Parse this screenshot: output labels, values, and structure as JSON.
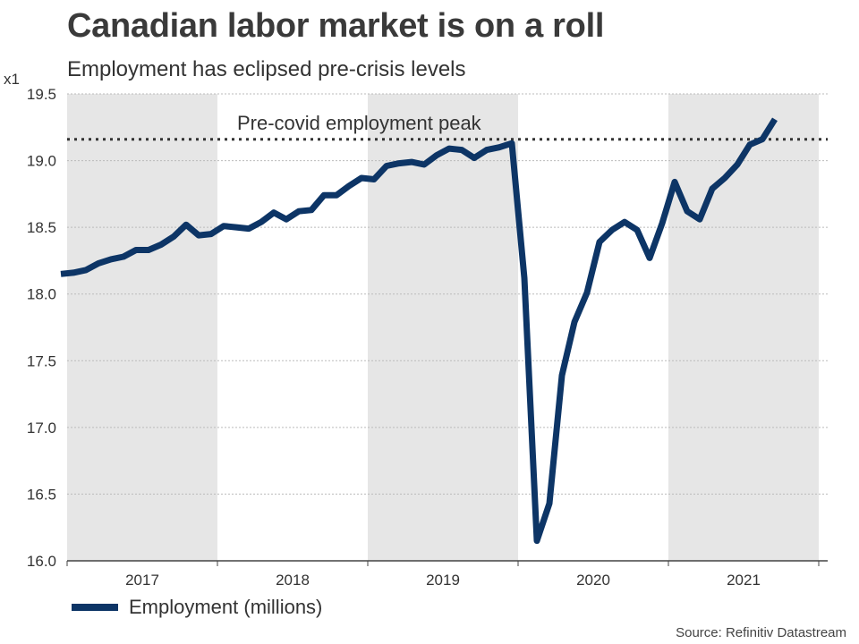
{
  "title": "Canadian labor market is on a roll",
  "subtitle": "Employment has eclipsed pre-crisis levels",
  "source": "Source: Refinitiv Datastream",
  "colors": {
    "series": "#0d3566",
    "band": "#e6e6e6",
    "grid": "#bbbbbb",
    "axis": "#444444",
    "dotted": "#333333"
  },
  "chart_data": {
    "type": "line",
    "ylabel": "",
    "y_unit": "x1",
    "ylim": [
      16.0,
      19.5
    ],
    "yticks": [
      "16.0",
      "16.5",
      "17.0",
      "17.5",
      "18.0",
      "18.5",
      "19.0",
      "19.5"
    ],
    "years": [
      "2017",
      "2018",
      "2019",
      "2020",
      "2021"
    ],
    "shaded_years": [
      "2017",
      "2019",
      "2021"
    ],
    "grid": true,
    "legend_position": "bottom-left",
    "reference_line": {
      "label": "Pre-covid employment peak",
      "value": 19.16
    },
    "series": [
      {
        "name": "Employment (millions)",
        "start": "2016-12",
        "values": [
          18.15,
          18.16,
          18.18,
          18.23,
          18.26,
          18.28,
          18.33,
          18.33,
          18.37,
          18.43,
          18.52,
          18.44,
          18.45,
          18.51,
          18.5,
          18.49,
          18.54,
          18.61,
          18.56,
          18.62,
          18.63,
          18.74,
          18.74,
          18.81,
          18.87,
          18.86,
          18.96,
          18.98,
          18.99,
          18.97,
          19.04,
          19.09,
          19.08,
          19.02,
          19.08,
          19.1,
          19.13,
          18.12,
          16.15,
          16.43,
          17.39,
          17.79,
          18.01,
          18.39,
          18.48,
          18.54,
          18.48,
          18.27,
          18.53,
          18.84,
          18.62,
          18.56,
          18.79,
          18.87,
          18.97,
          19.12,
          19.16,
          19.31
        ]
      }
    ]
  }
}
